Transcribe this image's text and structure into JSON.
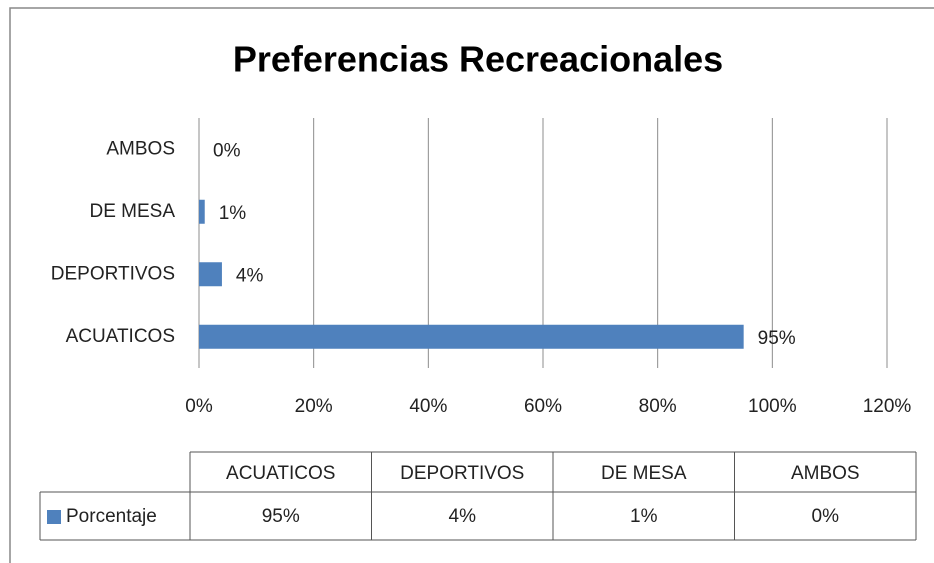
{
  "chart_data": {
    "type": "bar",
    "orientation": "horizontal",
    "title": "Preferencias Recreacionales",
    "categories": [
      "ACUATICOS",
      "DEPORTIVOS",
      "DE MESA",
      "AMBOS"
    ],
    "series": [
      {
        "name": "Porcentaje",
        "color": "#4f81bd",
        "values": [
          95,
          4,
          1,
          0
        ],
        "value_labels": [
          "95%",
          "4%",
          "1%",
          "0%"
        ]
      }
    ],
    "xlim": [
      0,
      120
    ],
    "xticks": [
      {
        "value": 0,
        "label": "0%"
      },
      {
        "value": 20,
        "label": "20%"
      },
      {
        "value": 40,
        "label": "40%"
      },
      {
        "value": 60,
        "label": "60%"
      },
      {
        "value": 80,
        "label": "80%"
      },
      {
        "value": 100,
        "label": "100%"
      },
      {
        "value": 120,
        "label": "120%"
      }
    ],
    "grid": true,
    "data_table": true
  }
}
